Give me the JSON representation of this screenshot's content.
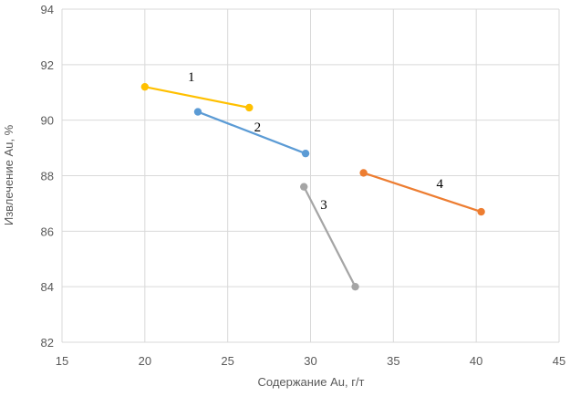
{
  "chart_data": {
    "type": "line",
    "title": "",
    "xlabel": "Содержание Au, г/т",
    "ylabel": "Извлечение Au, %",
    "xlim": [
      15,
      45
    ],
    "ylim": [
      82,
      94
    ],
    "x_ticks": [
      "15",
      "20",
      "25",
      "30",
      "35",
      "40",
      "45"
    ],
    "y_ticks": [
      "82",
      "84",
      "86",
      "88",
      "90",
      "92",
      "94"
    ],
    "grid": "horizontal",
    "legend": "none",
    "series": [
      {
        "name": "1",
        "color": "#FFC000",
        "points": [
          [
            20.0,
            91.2
          ],
          [
            26.3,
            90.45
          ]
        ]
      },
      {
        "name": "2",
        "color": "#5B9BD5",
        "points": [
          [
            23.2,
            90.3
          ],
          [
            29.7,
            88.8
          ]
        ]
      },
      {
        "name": "3",
        "color": "#A5A5A5",
        "points": [
          [
            29.6,
            87.6
          ],
          [
            32.7,
            84.0
          ]
        ]
      },
      {
        "name": "4",
        "color": "#ED7D31",
        "points": [
          [
            33.2,
            88.1
          ],
          [
            40.3,
            86.7
          ]
        ]
      }
    ],
    "series_labels": [
      {
        "text": "1",
        "x": 22.8,
        "y": 91.4
      },
      {
        "text": "2",
        "x": 26.8,
        "y": 89.6
      },
      {
        "text": "3",
        "x": 30.8,
        "y": 86.8
      },
      {
        "text": "4",
        "x": 37.8,
        "y": 87.55
      }
    ]
  }
}
